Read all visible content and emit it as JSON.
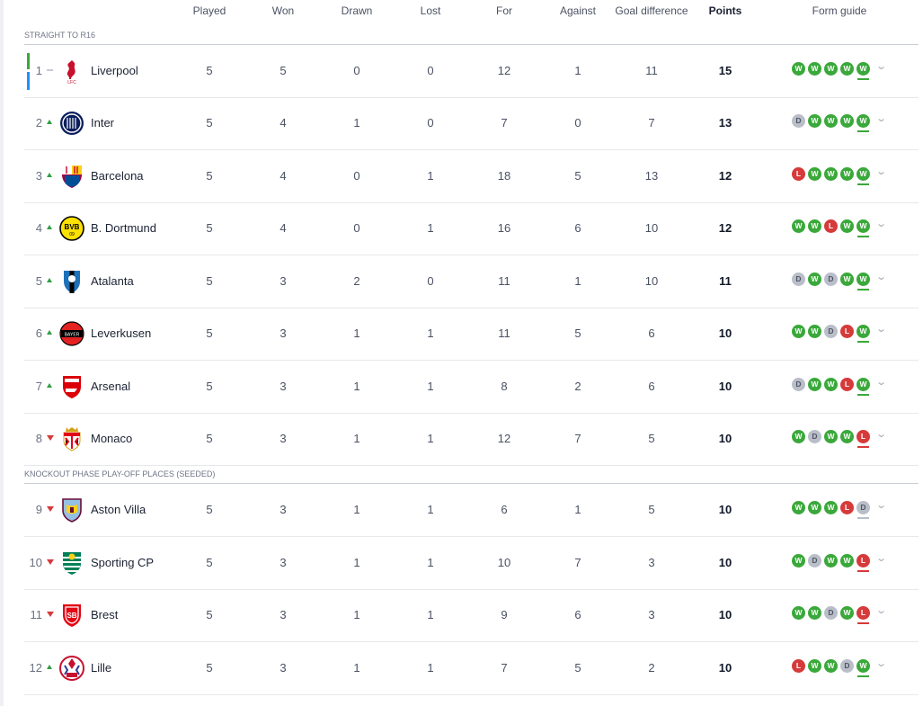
{
  "columns": {
    "played": "Played",
    "won": "Won",
    "drawn": "Drawn",
    "lost": "Lost",
    "for": "For",
    "against": "Against",
    "goal_difference": "Goal difference",
    "points": "Points",
    "form_guide": "Form guide"
  },
  "sections": [
    "STRAIGHT TO R16",
    "KNOCKOUT PHASE PLAY-OFF PLACES (SEEDED)"
  ],
  "colors": {
    "win": "#3aa83a",
    "loss": "#d63a3a",
    "draw": "#b9bec9",
    "qualify_bar_green": "#3aa83a",
    "qualify_bar_blue": "#1e90ff"
  },
  "teams": [
    {
      "rank": "1",
      "movement": "same",
      "team": "Liverpool",
      "crest": "liverpool-crest",
      "played": "5",
      "won": "5",
      "drawn": "0",
      "lost": "0",
      "for": "12",
      "against": "1",
      "gd": "11",
      "points": "15",
      "form": [
        "W",
        "W",
        "W",
        "W",
        "W"
      ]
    },
    {
      "rank": "2",
      "movement": "up",
      "team": "Inter",
      "crest": "inter-crest",
      "played": "5",
      "won": "4",
      "drawn": "1",
      "lost": "0",
      "for": "7",
      "against": "0",
      "gd": "7",
      "points": "13",
      "form": [
        "D",
        "W",
        "W",
        "W",
        "W"
      ]
    },
    {
      "rank": "3",
      "movement": "up",
      "team": "Barcelona",
      "crest": "barcelona-crest",
      "played": "5",
      "won": "4",
      "drawn": "0",
      "lost": "1",
      "for": "18",
      "against": "5",
      "gd": "13",
      "points": "12",
      "form": [
        "L",
        "W",
        "W",
        "W",
        "W"
      ]
    },
    {
      "rank": "4",
      "movement": "up",
      "team": "B. Dortmund",
      "crest": "dortmund-crest",
      "played": "5",
      "won": "4",
      "drawn": "0",
      "lost": "1",
      "for": "16",
      "against": "6",
      "gd": "10",
      "points": "12",
      "form": [
        "W",
        "W",
        "L",
        "W",
        "W"
      ]
    },
    {
      "rank": "5",
      "movement": "up",
      "team": "Atalanta",
      "crest": "atalanta-crest",
      "played": "5",
      "won": "3",
      "drawn": "2",
      "lost": "0",
      "for": "11",
      "against": "1",
      "gd": "10",
      "points": "11",
      "form": [
        "D",
        "W",
        "D",
        "W",
        "W"
      ]
    },
    {
      "rank": "6",
      "movement": "up",
      "team": "Leverkusen",
      "crest": "leverkusen-crest",
      "played": "5",
      "won": "3",
      "drawn": "1",
      "lost": "1",
      "for": "11",
      "against": "5",
      "gd": "6",
      "points": "10",
      "form": [
        "W",
        "W",
        "D",
        "L",
        "W"
      ]
    },
    {
      "rank": "7",
      "movement": "up",
      "team": "Arsenal",
      "crest": "arsenal-crest",
      "played": "5",
      "won": "3",
      "drawn": "1",
      "lost": "1",
      "for": "8",
      "against": "2",
      "gd": "6",
      "points": "10",
      "form": [
        "D",
        "W",
        "W",
        "L",
        "W"
      ]
    },
    {
      "rank": "8",
      "movement": "down",
      "team": "Monaco",
      "crest": "monaco-crest",
      "played": "5",
      "won": "3",
      "drawn": "1",
      "lost": "1",
      "for": "12",
      "against": "7",
      "gd": "5",
      "points": "10",
      "form": [
        "W",
        "D",
        "W",
        "W",
        "L"
      ]
    },
    {
      "rank": "9",
      "movement": "down",
      "team": "Aston Villa",
      "crest": "aston-villa-crest",
      "played": "5",
      "won": "3",
      "drawn": "1",
      "lost": "1",
      "for": "6",
      "against": "1",
      "gd": "5",
      "points": "10",
      "form": [
        "W",
        "W",
        "W",
        "L",
        "D"
      ]
    },
    {
      "rank": "10",
      "movement": "down",
      "team": "Sporting CP",
      "crest": "sporting-crest",
      "played": "5",
      "won": "3",
      "drawn": "1",
      "lost": "1",
      "for": "10",
      "against": "7",
      "gd": "3",
      "points": "10",
      "form": [
        "W",
        "D",
        "W",
        "W",
        "L"
      ]
    },
    {
      "rank": "11",
      "movement": "down",
      "team": "Brest",
      "crest": "brest-crest",
      "played": "5",
      "won": "3",
      "drawn": "1",
      "lost": "1",
      "for": "9",
      "against": "6",
      "gd": "3",
      "points": "10",
      "form": [
        "W",
        "W",
        "D",
        "W",
        "L"
      ]
    },
    {
      "rank": "12",
      "movement": "up",
      "team": "Lille",
      "crest": "lille-crest",
      "played": "5",
      "won": "3",
      "drawn": "1",
      "lost": "1",
      "for": "7",
      "against": "5",
      "gd": "2",
      "points": "10",
      "form": [
        "L",
        "W",
        "W",
        "D",
        "W"
      ]
    }
  ]
}
